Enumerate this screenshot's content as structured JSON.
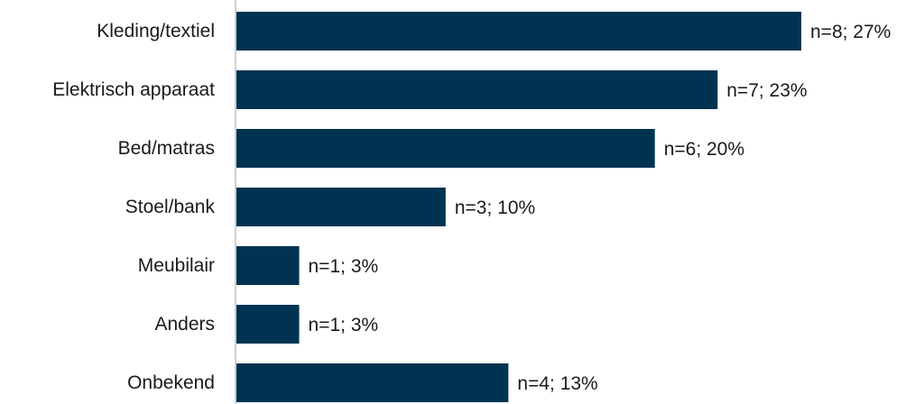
{
  "colors": {
    "bar": "#003352",
    "axis": "#bfbfbf",
    "text": "#1a1a1a"
  },
  "chart_data": {
    "type": "bar",
    "orientation": "horizontal",
    "categories": [
      "Kleding/textiel",
      "Elektrisch apparaat",
      "Bed/matras",
      "Stoel/bank",
      "Meubilair",
      "Anders",
      "Onbekend"
    ],
    "counts": [
      8,
      7,
      6,
      3,
      1,
      1,
      4
    ],
    "values": [
      27,
      23,
      20,
      10,
      3,
      3,
      13
    ],
    "data_labels": [
      "n=8; 27%",
      "n=7; 23%",
      "n=6; 20%",
      "n=3; 10%",
      "n=1; 3%",
      "n=1; 3%",
      "n=4; 13%"
    ],
    "title": "",
    "xlabel": "",
    "ylabel": "",
    "xlim": [
      0,
      27
    ],
    "grid": false,
    "legend": "none"
  }
}
